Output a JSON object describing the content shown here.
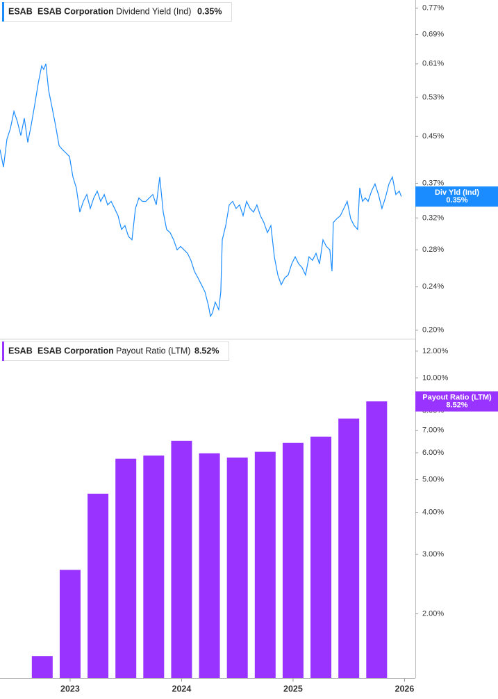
{
  "chart_data": [
    {
      "type": "line",
      "ticker": "ESAB",
      "company": "ESAB Corporation",
      "log_scale": true,
      "grid": false,
      "xlim": [
        2022.371,
        2026.097
      ],
      "ylim": [
        0.193,
        0.797
      ],
      "yticks": [
        {
          "value": 0.77,
          "label": "0.77%"
        },
        {
          "value": 0.69,
          "label": "0.69%"
        },
        {
          "value": 0.61,
          "label": "0.61%"
        },
        {
          "value": 0.53,
          "label": "0.53%"
        },
        {
          "value": 0.45,
          "label": "0.45%"
        },
        {
          "value": 0.37,
          "label": "0.37%"
        },
        {
          "value": 0.32,
          "label": "0.32%"
        },
        {
          "value": 0.28,
          "label": "0.28%"
        },
        {
          "value": 0.24,
          "label": "0.24%"
        },
        {
          "value": 0.2,
          "label": "0.20%"
        }
      ],
      "series": [
        {
          "name": "Dividend Yield (Ind)",
          "color": "#1a8cff",
          "x": [
            2022.371,
            2022.402,
            2022.433,
            2022.464,
            2022.496,
            2022.527,
            2022.558,
            2022.589,
            2022.62,
            2022.651,
            2022.683,
            2022.714,
            2022.745,
            2022.763,
            2022.782,
            2022.807,
            2022.838,
            2022.869,
            2022.901,
            2022.932,
            2022.963,
            2022.994,
            2023.025,
            2023.056,
            2023.087,
            2023.119,
            2023.15,
            2023.181,
            2023.212,
            2023.243,
            2023.274,
            2023.306,
            2023.337,
            2023.368,
            2023.399,
            2023.43,
            2023.461,
            2023.492,
            2023.524,
            2023.555,
            2023.586,
            2023.617,
            2023.648,
            2023.679,
            2023.71,
            2023.742,
            2023.773,
            2023.804,
            2023.835,
            2023.866,
            2023.897,
            2023.929,
            2023.96,
            2023.991,
            2024.022,
            2024.053,
            2024.084,
            2024.115,
            2024.147,
            2024.178,
            2024.209,
            2024.24,
            2024.259,
            2024.277,
            2024.302,
            2024.333,
            2024.352,
            2024.365,
            2024.396,
            2024.427,
            2024.458,
            2024.489,
            2024.52,
            2024.552,
            2024.583,
            2024.614,
            2024.645,
            2024.676,
            2024.707,
            2024.738,
            2024.77,
            2024.801,
            2024.832,
            2024.863,
            2024.894,
            2024.925,
            2024.956,
            2024.988,
            2025.019,
            2025.05,
            2025.081,
            2025.112,
            2025.143,
            2025.174,
            2025.206,
            2025.237,
            2025.268,
            2025.299,
            2025.33,
            2025.349,
            2025.361,
            2025.393,
            2025.424,
            2025.455,
            2025.486,
            2025.517,
            2025.548,
            2025.579,
            2025.598,
            2025.623,
            2025.648,
            2025.673,
            2025.704,
            2025.735,
            2025.766,
            2025.797,
            2025.828,
            2025.86,
            2025.891,
            2025.922,
            2025.953,
            2025.971
          ],
          "values": [
            0.426,
            0.396,
            0.445,
            0.465,
            0.5,
            0.479,
            0.452,
            0.486,
            0.439,
            0.472,
            0.515,
            0.562,
            0.605,
            0.596,
            0.61,
            0.546,
            0.508,
            0.472,
            0.433,
            0.426,
            0.42,
            0.414,
            0.38,
            0.363,
            0.328,
            0.343,
            0.353,
            0.333,
            0.348,
            0.358,
            0.343,
            0.353,
            0.338,
            0.343,
            0.333,
            0.323,
            0.305,
            0.31,
            0.296,
            0.292,
            0.333,
            0.348,
            0.343,
            0.343,
            0.348,
            0.353,
            0.338,
            0.38,
            0.328,
            0.305,
            0.301,
            0.292,
            0.28,
            0.284,
            0.28,
            0.276,
            0.268,
            0.256,
            0.249,
            0.242,
            0.235,
            0.222,
            0.212,
            0.215,
            0.225,
            0.218,
            0.235,
            0.292,
            0.31,
            0.338,
            0.343,
            0.333,
            0.338,
            0.323,
            0.343,
            0.333,
            0.328,
            0.338,
            0.323,
            0.314,
            0.301,
            0.31,
            0.272,
            0.252,
            0.242,
            0.249,
            0.252,
            0.264,
            0.272,
            0.264,
            0.26,
            0.252,
            0.272,
            0.268,
            0.276,
            0.264,
            0.292,
            0.284,
            0.28,
            0.256,
            0.314,
            0.319,
            0.323,
            0.333,
            0.343,
            0.319,
            0.31,
            0.305,
            0.363,
            0.343,
            0.348,
            0.343,
            0.358,
            0.369,
            0.353,
            0.333,
            0.348,
            0.369,
            0.38,
            0.353,
            0.358,
            0.35
          ]
        }
      ],
      "last_label": {
        "name": "Div Yld (Ind)",
        "value": 0.35,
        "label": "0.35%"
      }
    },
    {
      "type": "bar",
      "ticker": "ESAB",
      "company": "ESAB Corporation",
      "log_scale": true,
      "grid": false,
      "xlim": [
        2022.371,
        2026.097
      ],
      "ylim": [
        1.29,
        12.88
      ],
      "xticks": [
        2023,
        2024,
        2025,
        2026
      ],
      "yticks": [
        {
          "value": 12,
          "label": "12.00%"
        },
        {
          "value": 10,
          "label": "10.00%"
        },
        {
          "value": 8,
          "label": "8.00%"
        },
        {
          "value": 7,
          "label": "7.00%"
        },
        {
          "value": 6,
          "label": "6.00%"
        },
        {
          "value": 5,
          "label": "5.00%"
        },
        {
          "value": 4,
          "label": "4.00%"
        },
        {
          "value": 3,
          "label": "3.00%"
        },
        {
          "value": 2,
          "label": "2.00%"
        }
      ],
      "series": [
        {
          "name": "Payout Ratio (LTM)",
          "color": "#9933ff",
          "x": [
            2022.75,
            2023.0,
            2023.25,
            2023.5,
            2023.75,
            2024.0,
            2024.25,
            2024.5,
            2024.75,
            2025.0,
            2025.25,
            2025.5,
            2025.75
          ],
          "values": [
            1.5,
            2.7,
            4.54,
            5.76,
            5.89,
            6.51,
            5.98,
            5.81,
            6.04,
            6.42,
            6.7,
            7.58,
            8.52
          ]
        }
      ],
      "last_label": {
        "name": "Payout Ratio (LTM)",
        "value": 8.52,
        "label": "8.52%"
      }
    }
  ]
}
